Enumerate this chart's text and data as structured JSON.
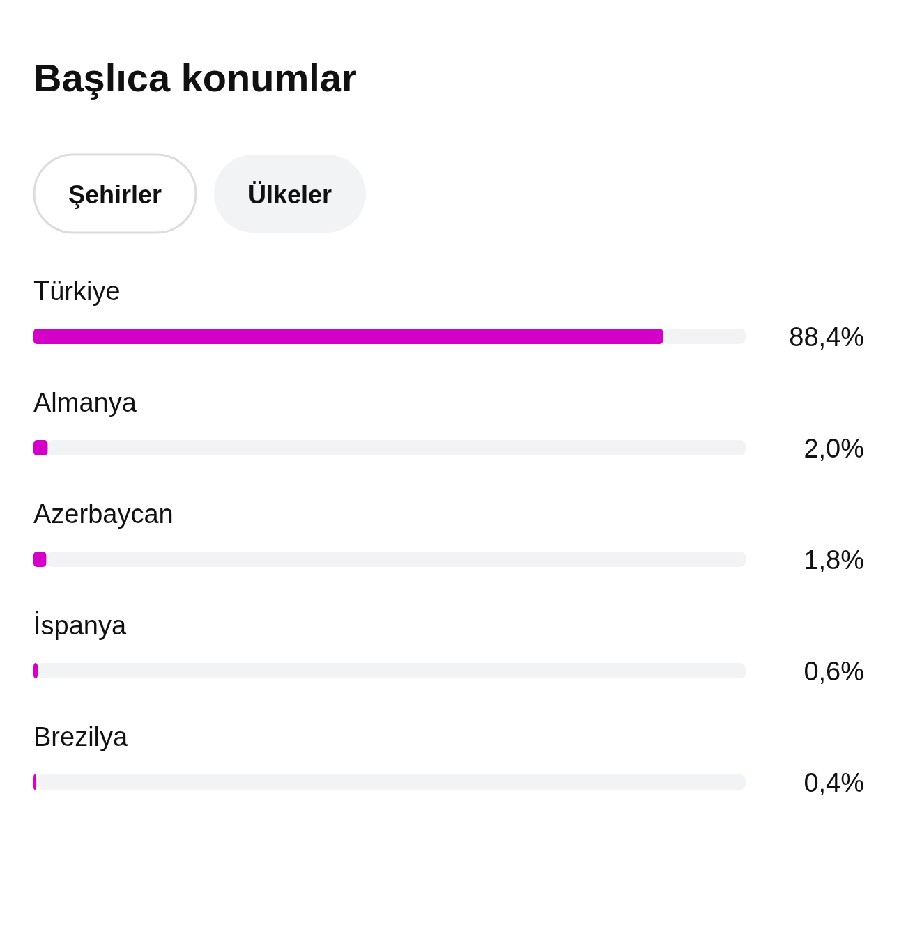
{
  "chart_data": {
    "type": "bar",
    "orientation": "horizontal",
    "title": "Başlıca konumlar",
    "annotations": [
      "Şehirler",
      "Ülkeler"
    ],
    "categories": [
      "Türkiye",
      "Almanya",
      "Azerbaycan",
      "İspanya",
      "Brezilya"
    ],
    "values": [
      88.4,
      2.0,
      1.8,
      0.6,
      0.4
    ],
    "value_labels": [
      "88,4%",
      "2,0%",
      "1,8%",
      "0,6%",
      "0,4%"
    ],
    "color": "#d400c8",
    "xlim": [
      0,
      100
    ]
  }
}
